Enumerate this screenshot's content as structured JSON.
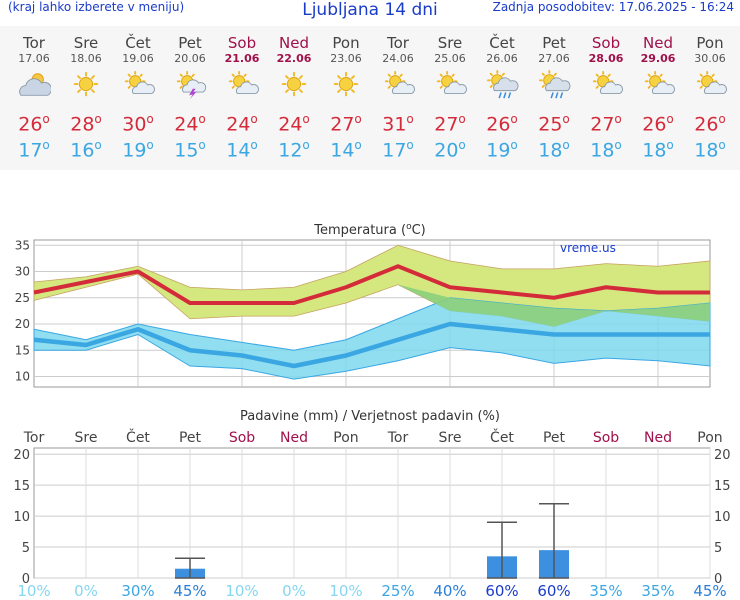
{
  "header": {
    "left": "(kraj lahko izberete v meniju)",
    "title": "Ljubljana 14 dni",
    "right": "Zadnja posodobitev: 17.06.2025 - 16:24"
  },
  "days": [
    {
      "name": "Tor",
      "date": "17.06",
      "weekend": false,
      "icon": "cloudy-sun-icon",
      "max": "26",
      "min": "17"
    },
    {
      "name": "Sre",
      "date": "18.06",
      "weekend": false,
      "icon": "sun-icon",
      "max": "28",
      "min": "16"
    },
    {
      "name": "Čet",
      "date": "19.06",
      "weekend": false,
      "icon": "sun-cloud-icon",
      "max": "30",
      "min": "19"
    },
    {
      "name": "Pet",
      "date": "20.06",
      "weekend": false,
      "icon": "thunderstorm-icon",
      "max": "24",
      "min": "15"
    },
    {
      "name": "Sob",
      "date": "21.06",
      "weekend": true,
      "icon": "sun-cloud-icon",
      "max": "24",
      "min": "14"
    },
    {
      "name": "Ned",
      "date": "22.06",
      "weekend": true,
      "icon": "sun-icon",
      "max": "24",
      "min": "12"
    },
    {
      "name": "Pon",
      "date": "23.06",
      "weekend": false,
      "icon": "sun-icon",
      "max": "27",
      "min": "14"
    },
    {
      "name": "Tor",
      "date": "24.06",
      "weekend": false,
      "icon": "sun-cloud-icon",
      "max": "31",
      "min": "17"
    },
    {
      "name": "Sre",
      "date": "25.06",
      "weekend": false,
      "icon": "sun-cloud-icon",
      "max": "27",
      "min": "20"
    },
    {
      "name": "Čet",
      "date": "26.06",
      "weekend": false,
      "icon": "rain-sun-icon",
      "max": "26",
      "min": "19"
    },
    {
      "name": "Pet",
      "date": "27.06",
      "weekend": false,
      "icon": "rain-sun-icon",
      "max": "25",
      "min": "18"
    },
    {
      "name": "Sob",
      "date": "28.06",
      "weekend": true,
      "icon": "sun-cloud-icon",
      "max": "27",
      "min": "18"
    },
    {
      "name": "Ned",
      "date": "29.06",
      "weekend": true,
      "icon": "sun-cloud-icon",
      "max": "26",
      "min": "18"
    },
    {
      "name": "Pon",
      "date": "30.06",
      "weekend": false,
      "icon": "sun-cloud-icon",
      "max": "26",
      "min": "18"
    }
  ],
  "colors": {
    "max": "#d42b3a",
    "min": "#3aa7e3",
    "weekend": "#a0104a",
    "bar": "#3d8fe0",
    "max_band": "#d4e87f",
    "min_band": "#7dd8ec",
    "overlap": "#8ccf7c"
  },
  "chart_data": [
    {
      "type": "line",
      "title": "Temperatura (",
      "title_unit": "C",
      "title_end": ")",
      "degree": "o",
      "watermark": "vreme.us",
      "ylim": [
        8,
        36
      ],
      "yticks": [
        "10",
        "15",
        "20",
        "25",
        "30",
        "35"
      ],
      "series": [
        {
          "name": "max",
          "values": [
            26,
            28,
            30,
            24,
            24,
            24,
            27,
            31,
            27,
            26,
            25,
            27,
            26,
            26
          ],
          "band_low": [
            24.5,
            27,
            29.5,
            21,
            21.5,
            21.5,
            24,
            27.5,
            22.5,
            21.5,
            19.5,
            22.5,
            21.5,
            20.5
          ],
          "band_high": [
            28,
            29,
            31,
            27,
            26.5,
            27,
            30,
            35,
            32,
            30.5,
            30.5,
            31.5,
            31,
            32
          ]
        },
        {
          "name": "min",
          "values": [
            17,
            16,
            19,
            15,
            14,
            12,
            14,
            17,
            20,
            19,
            18,
            18,
            18,
            18
          ],
          "band_low": [
            15,
            15,
            18,
            12,
            11.5,
            9.5,
            11,
            13,
            15.5,
            14.5,
            12.5,
            13.5,
            13,
            12
          ],
          "band_high": [
            19,
            17,
            20,
            18,
            16.5,
            15,
            17,
            21,
            25,
            24,
            23,
            22.5,
            23,
            24
          ]
        }
      ]
    },
    {
      "type": "bar",
      "title": "Padavine (mm) / Verjetnost padavin (%)",
      "categories": [
        "Tor",
        "Sre",
        "Čet",
        "Pet",
        "Sob",
        "Ned",
        "Pon",
        "Tor",
        "Sre",
        "Čet",
        "Pet",
        "Sob",
        "Ned",
        "Pon"
      ],
      "weekend": [
        false,
        false,
        false,
        false,
        true,
        true,
        false,
        false,
        false,
        false,
        false,
        true,
        true,
        false
      ],
      "ylim": [
        0,
        21
      ],
      "yticks": [
        "0",
        "5",
        "10",
        "15",
        "20"
      ],
      "values": [
        0,
        0,
        0,
        1.5,
        0,
        0,
        0,
        0,
        0,
        3.5,
        4.5,
        0,
        0,
        0
      ],
      "errors": [
        null,
        null,
        null,
        [
          0,
          3.2
        ],
        null,
        null,
        null,
        null,
        null,
        [
          0,
          9
        ],
        [
          0,
          12
        ],
        null,
        null,
        null
      ],
      "probability": [
        "10%",
        "0%",
        "30%",
        "45%",
        "10%",
        "0%",
        "10%",
        "25%",
        "40%",
        "60%",
        "60%",
        "35%",
        "35%",
        "45%"
      ]
    }
  ]
}
